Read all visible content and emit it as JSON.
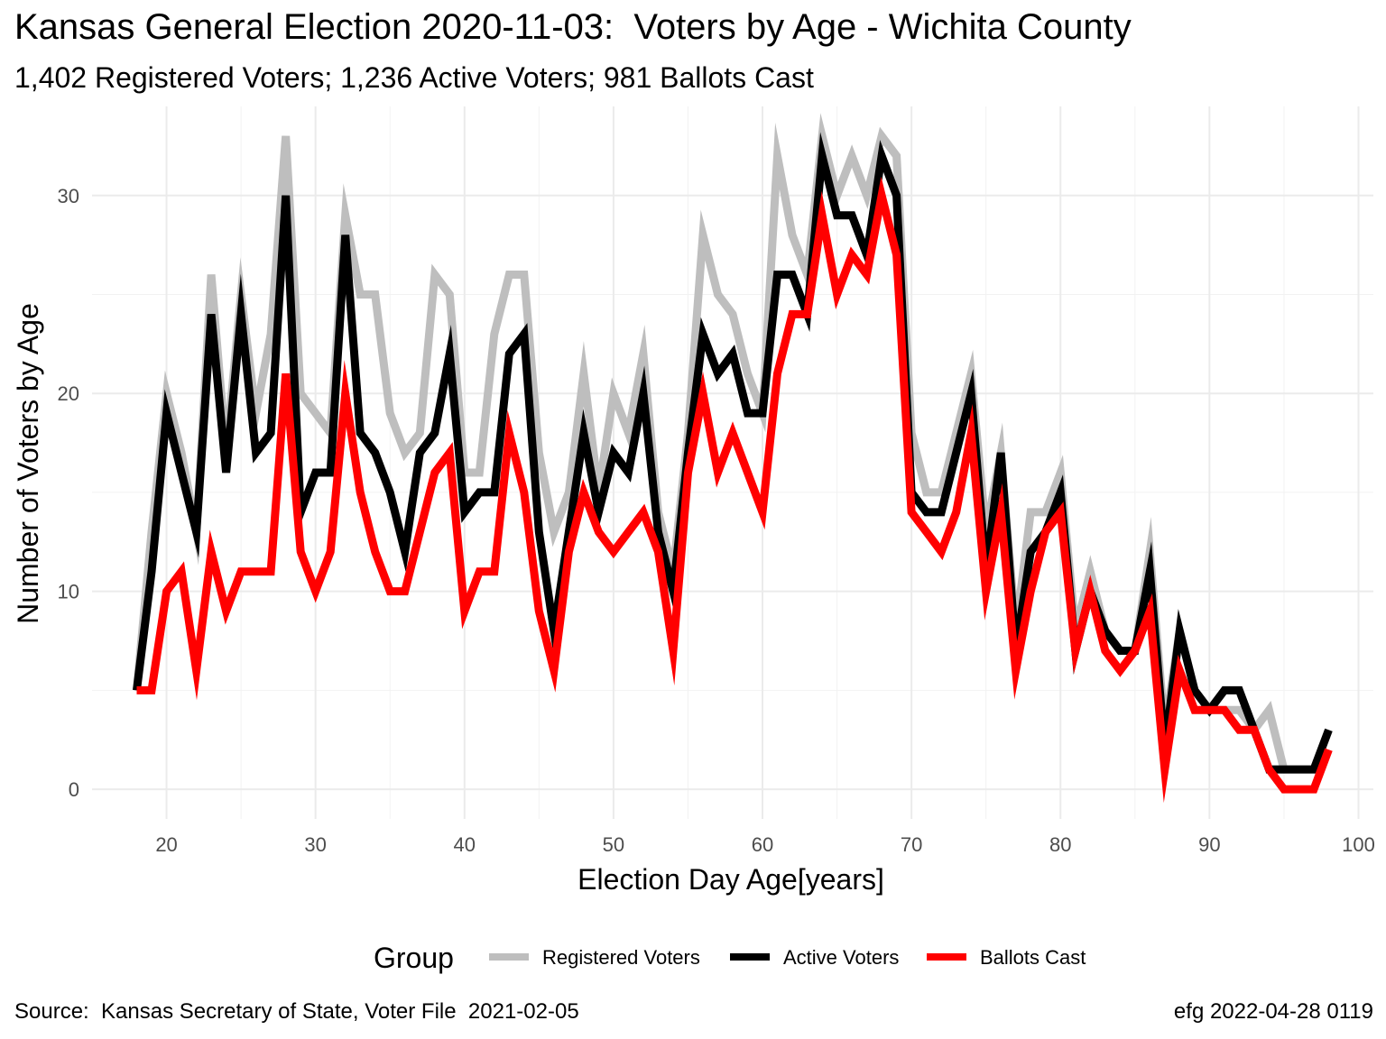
{
  "chart_data": {
    "type": "line",
    "title": "Kansas General Election 2020-11-03:  Voters by Age - Wichita County",
    "subtitle": "1,402 Registered Voters; 1,236 Active Voters; 981 Ballots Cast",
    "xlabel": "Election Day Age[years]",
    "ylabel": "Number of Voters by Age",
    "xlim": [
      15,
      101
    ],
    "ylim": [
      -1.5,
      34.5
    ],
    "x_ticks": [
      "20",
      "30",
      "40",
      "50",
      "60",
      "70",
      "80",
      "90",
      "100"
    ],
    "y_ticks": [
      "0",
      "10",
      "20",
      "30"
    ],
    "grid": true,
    "legend_title": "Group",
    "legend_position": "bottom",
    "x": [
      18,
      19,
      20,
      21,
      22,
      23,
      24,
      25,
      26,
      27,
      28,
      29,
      30,
      31,
      32,
      33,
      34,
      35,
      36,
      37,
      38,
      39,
      40,
      41,
      42,
      43,
      44,
      45,
      46,
      47,
      48,
      49,
      50,
      51,
      52,
      53,
      54,
      55,
      56,
      57,
      58,
      59,
      60,
      61,
      62,
      63,
      64,
      65,
      66,
      67,
      68,
      69,
      70,
      71,
      72,
      73,
      74,
      75,
      76,
      77,
      78,
      79,
      80,
      81,
      82,
      83,
      84,
      85,
      86,
      87,
      88,
      89,
      90,
      91,
      92,
      93,
      94,
      95,
      96,
      97,
      98
    ],
    "series": [
      {
        "name": "Registered Voters",
        "color": "#bebebe",
        "values": [
          5,
          13,
          20,
          17,
          13,
          26,
          17,
          25,
          19,
          23,
          33,
          20,
          19,
          18,
          29,
          25,
          25,
          19,
          17,
          18,
          26,
          25,
          16,
          16,
          23,
          26,
          26,
          17,
          13,
          15,
          21,
          15,
          20,
          18,
          22,
          14,
          11,
          18,
          28,
          25,
          24,
          21,
          19,
          32,
          28,
          26,
          33,
          30,
          32,
          30,
          33,
          32,
          18,
          15,
          15,
          18,
          21,
          13,
          17,
          8,
          14,
          14,
          16,
          8,
          11,
          8,
          7,
          7,
          12,
          3,
          8,
          5,
          4,
          4,
          4,
          3,
          4,
          1,
          1,
          1,
          3
        ]
      },
      {
        "name": "Active Voters",
        "color": "#000000",
        "values": [
          5,
          11,
          19,
          16,
          13,
          24,
          16,
          24,
          17,
          18,
          30,
          14,
          16,
          16,
          28,
          18,
          17,
          15,
          12,
          17,
          18,
          22,
          14,
          15,
          15,
          22,
          23,
          13,
          8,
          13,
          18,
          14,
          17,
          16,
          20,
          13,
          10,
          17,
          23,
          21,
          22,
          19,
          19,
          26,
          26,
          24,
          32,
          29,
          29,
          27,
          32,
          30,
          15,
          14,
          14,
          17,
          20,
          11,
          17,
          7,
          12,
          13,
          15,
          7,
          10,
          8,
          7,
          7,
          11,
          2,
          8,
          5,
          4,
          5,
          5,
          3,
          1,
          1,
          1,
          1,
          3
        ]
      },
      {
        "name": "Ballots Cast",
        "color": "#ff0000",
        "values": [
          5,
          5,
          10,
          11,
          6,
          12,
          9,
          11,
          11,
          11,
          21,
          12,
          10,
          12,
          20,
          15,
          12,
          10,
          10,
          13,
          16,
          17,
          9,
          11,
          11,
          18,
          15,
          9,
          6,
          12,
          15,
          13,
          12,
          13,
          14,
          12,
          7,
          16,
          20,
          16,
          18,
          16,
          14,
          21,
          24,
          24,
          29,
          25,
          27,
          26,
          30,
          27,
          14,
          13,
          12,
          14,
          18,
          10,
          14,
          6,
          10,
          13,
          14,
          7,
          10,
          7,
          6,
          7,
          9,
          1,
          6,
          4,
          4,
          4,
          3,
          3,
          1,
          0,
          0,
          0,
          2
        ]
      }
    ]
  },
  "caption": {
    "source": "Source:  Kansas Secretary of State, Voter File  2021-02-05",
    "stamp": "efg 2022-04-28 0119"
  }
}
